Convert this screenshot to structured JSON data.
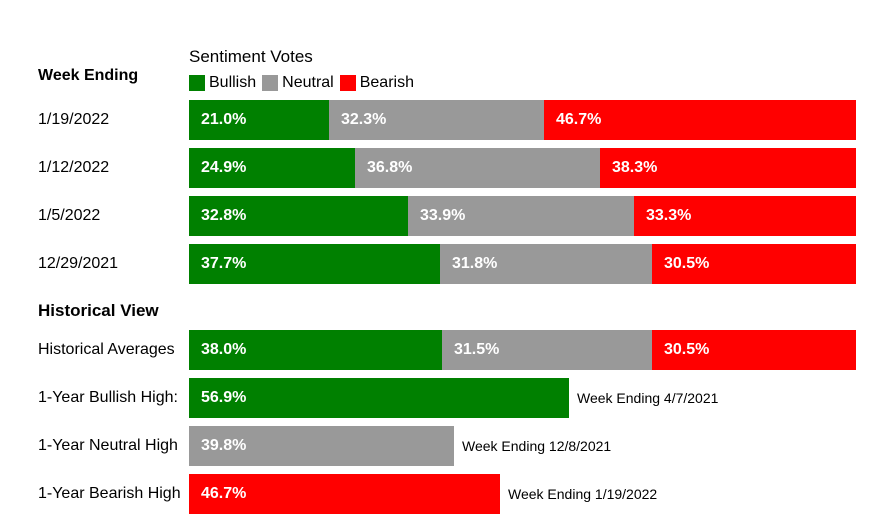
{
  "chart_data": {
    "type": "bar",
    "orientation": "horizontal",
    "stacked": true,
    "title": "Sentiment Votes",
    "legend": [
      {
        "name": "Bullish",
        "color": "#008000"
      },
      {
        "name": "Neutral",
        "color": "#999999"
      },
      {
        "name": "Bearish",
        "color": "#ff0000"
      }
    ],
    "legend_placement": "top-left",
    "xlim": [
      0,
      100
    ],
    "weekly": {
      "heading": "Week Ending",
      "rows": [
        {
          "label": "1/19/2022",
          "values": [
            21.0,
            32.3,
            46.7
          ],
          "texts": [
            "21.0%",
            "32.3%",
            "46.7%"
          ]
        },
        {
          "label": "1/12/2022",
          "values": [
            24.9,
            36.8,
            38.3
          ],
          "texts": [
            "24.9%",
            "36.8%",
            "38.3%"
          ]
        },
        {
          "label": "1/5/2022",
          "values": [
            32.8,
            33.9,
            33.3
          ],
          "texts": [
            "32.8%",
            "33.9%",
            "33.3%"
          ]
        },
        {
          "label": "12/29/2021",
          "values": [
            37.7,
            31.8,
            30.5
          ],
          "texts": [
            "37.7%",
            "31.8%",
            "30.5%"
          ]
        }
      ]
    },
    "historical": {
      "heading": "Historical View",
      "averages": {
        "label": "Historical Averages",
        "values": [
          38.0,
          31.5,
          30.5
        ],
        "texts": [
          "38.0%",
          "31.5%",
          "30.5%"
        ]
      },
      "highs": [
        {
          "label": "1-Year Bullish High:",
          "series": 0,
          "value": 56.9,
          "text": "56.9%",
          "note": "Week Ending 4/7/2021"
        },
        {
          "label": "1-Year Neutral High",
          "series": 1,
          "value": 39.8,
          "text": "39.8%",
          "note": "Week Ending 12/8/2021"
        },
        {
          "label": "1-Year Bearish High",
          "series": 2,
          "value": 46.7,
          "text": "46.7%",
          "note": "Week Ending 1/19/2022"
        }
      ]
    }
  }
}
